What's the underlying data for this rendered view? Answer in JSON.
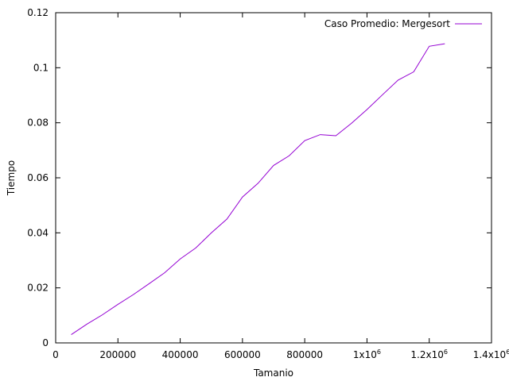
{
  "chart_data": {
    "type": "line",
    "xlabel": "Tamanio",
    "ylabel": "Tiempo",
    "xlim": [
      0,
      1400000
    ],
    "ylim": [
      0,
      0.12
    ],
    "x_ticks": [
      {
        "value": 0,
        "label": "0"
      },
      {
        "value": 200000,
        "label": "200000"
      },
      {
        "value": 400000,
        "label": "400000"
      },
      {
        "value": 600000,
        "label": "600000"
      },
      {
        "value": 800000,
        "label": "800000"
      },
      {
        "value": 1000000,
        "label": "1x10",
        "exp": "6"
      },
      {
        "value": 1200000,
        "label": "1.2x10",
        "exp": "6"
      },
      {
        "value": 1400000,
        "label": "1.4x10",
        "exp": "6"
      }
    ],
    "y_ticks": [
      {
        "value": 0,
        "label": "0"
      },
      {
        "value": 0.02,
        "label": "0.02"
      },
      {
        "value": 0.04,
        "label": "0.04"
      },
      {
        "value": 0.06,
        "label": "0.06"
      },
      {
        "value": 0.08,
        "label": "0.08"
      },
      {
        "value": 0.1,
        "label": "0.1"
      },
      {
        "value": 0.12,
        "label": "0.12"
      }
    ],
    "grid": false,
    "legend_position": "top-right",
    "series": [
      {
        "name": "Caso Promedio: Mergesort",
        "color": "#9400d3",
        "x": [
          50000,
          100000,
          150000,
          200000,
          250000,
          300000,
          350000,
          400000,
          450000,
          500000,
          550000,
          600000,
          650000,
          700000,
          750000,
          800000,
          850000,
          900000,
          950000,
          1000000,
          1050000,
          1100000,
          1150000,
          1200000,
          1250000
        ],
        "y": [
          0.003,
          0.0068,
          0.0102,
          0.014,
          0.0176,
          0.0215,
          0.0255,
          0.0305,
          0.0345,
          0.04,
          0.045,
          0.053,
          0.058,
          0.0645,
          0.068,
          0.0735,
          0.0757,
          0.0753,
          0.0798,
          0.0848,
          0.0902,
          0.0955,
          0.0985,
          0.1078,
          0.1087
        ]
      }
    ]
  }
}
